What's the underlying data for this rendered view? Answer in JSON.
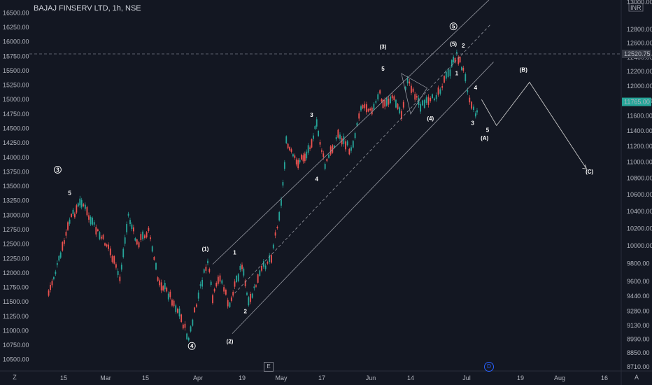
{
  "header": {
    "title": "BAJAJ FINSERV LTD, 1h, NSE"
  },
  "chart_data": {
    "type": "line",
    "title": "BAJAJ FINSERV LTD, 1h, NSE",
    "colors": {
      "up": "#26a69a",
      "down": "#ef5350",
      "background": "#131722",
      "text": "#b2b5be",
      "price_tag": "#26a69a",
      "line": "#c8c8c8"
    },
    "left_axis": {
      "ticks": [
        "16500.00",
        "16250.00",
        "16000.00",
        "15750.00",
        "15500.00",
        "15250.00",
        "15000.00",
        "14750.00",
        "14500.00",
        "14250.00",
        "14000.00",
        "13750.00",
        "13500.00",
        "13250.00",
        "13000.00",
        "12750.00",
        "12500.00",
        "12250.00",
        "12000.00",
        "11750.00",
        "11500.00",
        "11250.00",
        "11000.00",
        "10750.00",
        "10500.00"
      ],
      "range": [
        10400,
        16650
      ]
    },
    "right_axis": {
      "ticks": [
        "12800.00",
        "12600.00",
        "12400.00",
        "12200.00",
        "12000.00",
        "11800.00",
        "11600.00",
        "11400.00",
        "11200.00",
        "11000.00",
        "10800.00",
        "10600.00",
        "10400.00",
        "10200.00",
        "10000.00",
        "9800.00",
        "9600.00",
        "9440.00",
        "9280.00",
        "9130.00",
        "8990.00",
        "8850.00",
        "8710.00"
      ],
      "top_label": "13000.00",
      "currency": "INR",
      "scale": "log"
    },
    "x_ticks": [
      "15",
      "Mar",
      "15",
      "Apr",
      "19",
      "May",
      "17",
      "Jun",
      "14",
      "Jul",
      "19",
      "Aug",
      "16"
    ],
    "price_now": "11765.00",
    "price_ref": "12520.75",
    "price_path": [
      {
        "d": "Feb 10",
        "v": 11650
      },
      {
        "d": "Feb 14",
        "v": 12300
      },
      {
        "d": "Feb 17",
        "v": 12900
      },
      {
        "d": "Feb 21",
        "v": 13250
      },
      {
        "d": "Feb 24",
        "v": 12900
      },
      {
        "d": "Feb 27",
        "v": 12650
      },
      {
        "d": "Mar 2",
        "v": 12450
      },
      {
        "d": "Mar 6",
        "v": 11900
      },
      {
        "d": "Mar 9",
        "v": 13000
      },
      {
        "d": "Mar 12",
        "v": 12500
      },
      {
        "d": "Mar 16",
        "v": 12750
      },
      {
        "d": "Mar 19",
        "v": 11900
      },
      {
        "d": "Mar 23",
        "v": 11600
      },
      {
        "d": "Mar 26",
        "v": 11300
      },
      {
        "d": "Mar 29",
        "v": 10850
      },
      {
        "d": "Apr 2",
        "v": 11750
      },
      {
        "d": "Apr 5",
        "v": 12200
      },
      {
        "d": "Apr 7",
        "v": 11550
      },
      {
        "d": "Apr 10",
        "v": 11950
      },
      {
        "d": "Apr 14",
        "v": 11400
      },
      {
        "d": "Apr 16",
        "v": 11800
      },
      {
        "d": "Apr 19",
        "v": 12150
      },
      {
        "d": "Apr 21",
        "v": 11450
      },
      {
        "d": "Apr 25",
        "v": 12050
      },
      {
        "d": "Apr 28",
        "v": 12300
      },
      {
        "d": "May 1",
        "v": 13200
      },
      {
        "d": "May 3",
        "v": 14250
      },
      {
        "d": "May 7",
        "v": 13900
      },
      {
        "d": "May 11",
        "v": 14050
      },
      {
        "d": "May 15",
        "v": 14550
      },
      {
        "d": "May 18",
        "v": 13850
      },
      {
        "d": "May 22",
        "v": 14400
      },
      {
        "d": "May 26",
        "v": 14100
      },
      {
        "d": "May 29",
        "v": 14900
      },
      {
        "d": "Jun 2",
        "v": 14850
      },
      {
        "d": "Jun 4",
        "v": 15100
      },
      {
        "d": "Jun 5",
        "v": 14900
      },
      {
        "d": "Jun 8",
        "v": 15050
      },
      {
        "d": "Jun 11",
        "v": 14750
      },
      {
        "d": "Jun 13",
        "v": 15350
      },
      {
        "d": "Jun 17",
        "v": 14900
      },
      {
        "d": "Jun 20",
        "v": 14950
      },
      {
        "d": "Jun 23",
        "v": 15200
      },
      {
        "d": "Jun 26",
        "v": 15500
      },
      {
        "d": "Jun 28",
        "v": 15800
      },
      {
        "d": "Jun 30",
        "v": 15500
      },
      {
        "d": "Jul 2",
        "v": 15050
      },
      {
        "d": "Jul 4",
        "v": 14750
      },
      {
        "d": "Jul 5",
        "v": 14900
      }
    ],
    "channels": [
      {
        "name": "upper",
        "from": {
          "d": "Apr 7",
          "v": 12150
        },
        "to": {
          "d": "Jul 9",
          "v": 16750
        }
      },
      {
        "name": "middle",
        "from": {
          "d": "Apr 16",
          "v": 11650
        },
        "to": {
          "d": "Jul 9",
          "v": 16300
        }
      },
      {
        "name": "lower",
        "from": {
          "d": "Apr 15",
          "v": 10950
        },
        "to": {
          "d": "Jul 10",
          "v": 15650
        }
      }
    ],
    "projection": [
      {
        "d": "Jul 6",
        "v": 15000
      },
      {
        "d": "Jul 11",
        "v": 14550
      },
      {
        "d": "Jul 22",
        "v": 15300
      },
      {
        "d": "Aug 10",
        "v": 13800
      }
    ],
    "triangle": [
      {
        "d": "Jun 11",
        "v": 15450
      },
      {
        "d": "Jun 19",
        "v": 15200
      },
      {
        "d": "Jun 14",
        "v": 14750
      }
    ],
    "wave_labels": [
      {
        "text": "3",
        "circled": true,
        "d": "Feb 13",
        "v": 13750
      },
      {
        "text": "5",
        "circled": false,
        "d": "Feb 17",
        "v": 13350
      },
      {
        "text": "4",
        "circled": true,
        "d": "Mar 30",
        "v": 10700
      },
      {
        "text": "(1)",
        "circled": false,
        "d": "Apr 4",
        "v": 12380
      },
      {
        "text": "1",
        "circled": false,
        "d": "Apr 16",
        "v": 12320
      },
      {
        "text": "(2)",
        "circled": false,
        "d": "Apr 14",
        "v": 10780
      },
      {
        "text": "2",
        "circled": false,
        "d": "Apr 20",
        "v": 11300
      },
      {
        "text": "3",
        "circled": false,
        "d": "May 13",
        "v": 14700
      },
      {
        "text": "4",
        "circled": false,
        "d": "May 15",
        "v": 13590
      },
      {
        "text": "5",
        "circled": false,
        "d": "Jun 5",
        "v": 15500
      },
      {
        "text": "(3)",
        "circled": false,
        "d": "Jun 5",
        "v": 15880
      },
      {
        "text": "(4)",
        "circled": false,
        "d": "Jun 20",
        "v": 14640
      },
      {
        "text": "5",
        "circled": true,
        "d": "Jun 27",
        "v": 16230
      },
      {
        "text": "(5)",
        "circled": false,
        "d": "Jun 27",
        "v": 15930
      },
      {
        "text": "2",
        "circled": false,
        "d": "Jun 30",
        "v": 15900
      },
      {
        "text": "1",
        "circled": false,
        "d": "Jun 28",
        "v": 15420
      },
      {
        "text": "4",
        "circled": false,
        "d": "Jul 4",
        "v": 15170
      },
      {
        "text": "3",
        "circled": false,
        "d": "Jul 3",
        "v": 14560
      },
      {
        "text": "5",
        "circled": false,
        "d": "Jul 8",
        "v": 14440
      },
      {
        "text": "(A)",
        "circled": false,
        "d": "Jul 7",
        "v": 14300
      },
      {
        "text": "(B)",
        "circled": false,
        "d": "Jul 20",
        "v": 15480
      },
      {
        "text": "(C)",
        "circled": false,
        "d": "Aug 11",
        "v": 13720
      }
    ],
    "grid": false,
    "legend": "none"
  },
  "bottom_bar": {
    "left_icon": "Z",
    "event_e": "E",
    "event_d": "D",
    "right_icon": "A"
  }
}
